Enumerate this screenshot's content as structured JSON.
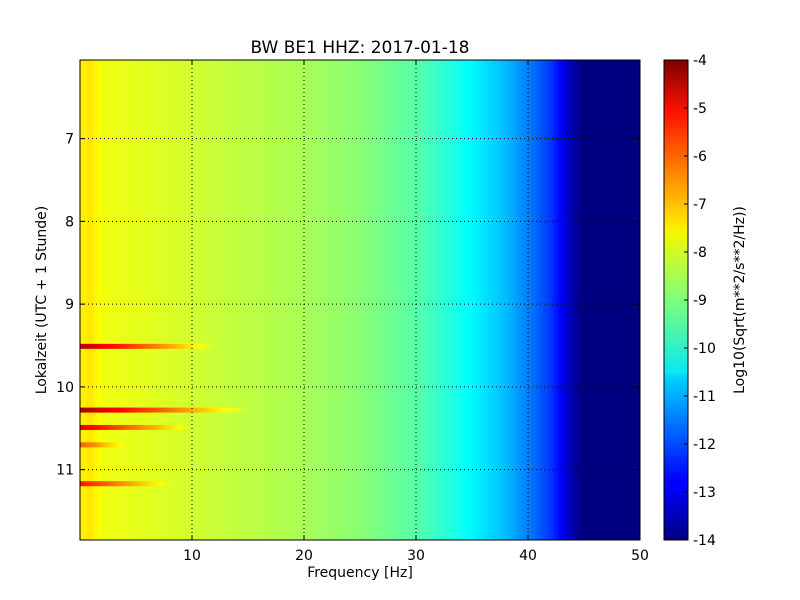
{
  "chart_data": {
    "type": "heatmap",
    "title": "BW BE1 HHZ: 2017-01-18",
    "xlabel": "Frequency [Hz]",
    "ylabel": "Lokalzeit (UTC + 1 Stunde)",
    "xlim": [
      0,
      50
    ],
    "ylim": [
      6.05,
      11.85
    ],
    "y_inverted": true,
    "x_ticks": [
      10,
      20,
      30,
      40,
      50
    ],
    "y_ticks": [
      7,
      8,
      9,
      10,
      11
    ],
    "grid": true,
    "colormap": "jet",
    "colorbar": {
      "label": "Log10(Sqrt(m**2/s**2/Hz))",
      "range": [
        -14,
        -4
      ],
      "ticks": [
        -4,
        -5,
        -6,
        -7,
        -8,
        -9,
        -10,
        -11,
        -12,
        -13,
        -14
      ]
    },
    "profile": {
      "frequency_hz": [
        0.3,
        1,
        1.5,
        2,
        5,
        10,
        15,
        20,
        25,
        30,
        33,
        36,
        38,
        40,
        42,
        43,
        44,
        45,
        50
      ],
      "log_psd": [
        -7.6,
        -7.5,
        -7.7,
        -7.9,
        -8.0,
        -8.2,
        -8.4,
        -8.6,
        -8.9,
        -9.4,
        -9.9,
        -10.5,
        -10.9,
        -11.5,
        -12.2,
        -12.8,
        -13.6,
        -14.0,
        -14.0
      ]
    },
    "events": [
      {
        "time": 9.51,
        "peak_log_psd": -4.6,
        "extends_to_hz": 12
      },
      {
        "time": 10.28,
        "peak_log_psd": -4.5,
        "extends_to_hz": 15
      },
      {
        "time": 10.49,
        "peak_log_psd": -5.0,
        "extends_to_hz": 10
      },
      {
        "time": 10.7,
        "peak_log_psd": -6.2,
        "extends_to_hz": 4
      },
      {
        "time": 11.17,
        "peak_log_psd": -5.5,
        "extends_to_hz": 8
      }
    ]
  }
}
